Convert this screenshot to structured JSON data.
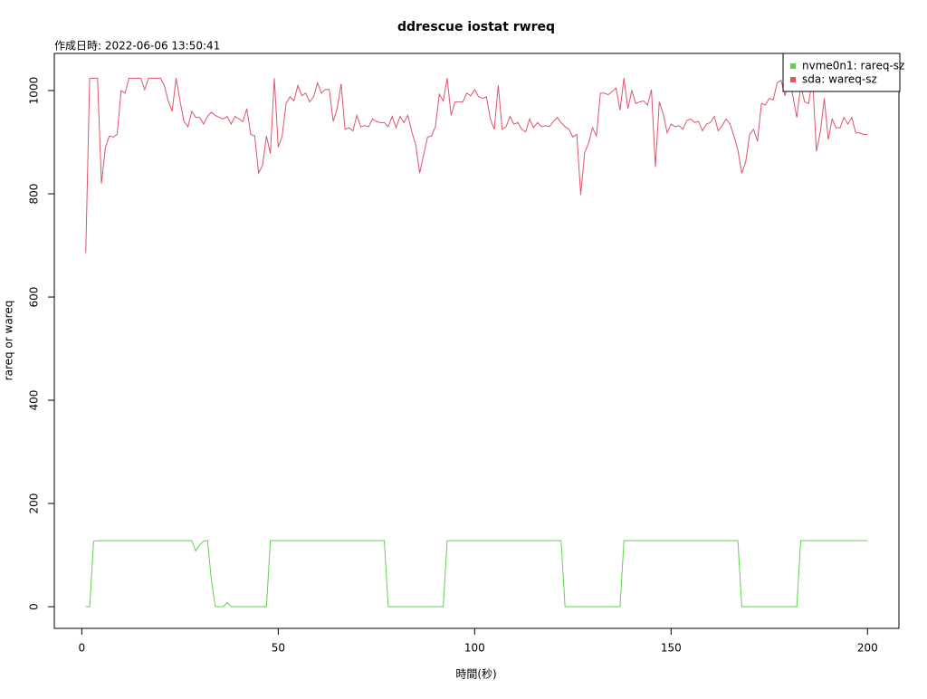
{
  "chart_data": {
    "type": "line",
    "title": "ddrescue iostat rwreq",
    "subtitle": "作成日時: 2022-06-06 13:50:41",
    "xlabel": "時間(秒)",
    "ylabel": "rareq or wareq",
    "xlim": [
      -7,
      208
    ],
    "ylim": [
      -42,
      1072
    ],
    "xticks": [
      0,
      50,
      100,
      150,
      200
    ],
    "yticks": [
      0,
      200,
      400,
      600,
      800,
      1000
    ],
    "grid": false,
    "legend": "topright",
    "x": [
      1,
      2,
      3,
      4,
      5,
      6,
      7,
      8,
      9,
      10,
      11,
      12,
      13,
      14,
      15,
      16,
      17,
      18,
      19,
      20,
      21,
      22,
      23,
      24,
      25,
      26,
      27,
      28,
      29,
      30,
      31,
      32,
      33,
      34,
      35,
      36,
      37,
      38,
      39,
      40,
      41,
      42,
      43,
      44,
      45,
      46,
      47,
      48,
      49,
      50,
      51,
      52,
      53,
      54,
      55,
      56,
      57,
      58,
      59,
      60,
      61,
      62,
      63,
      64,
      65,
      66,
      67,
      68,
      69,
      70,
      71,
      72,
      73,
      74,
      75,
      76,
      77,
      78,
      79,
      80,
      81,
      82,
      83,
      84,
      85,
      86,
      87,
      88,
      89,
      90,
      91,
      92,
      93,
      94,
      95,
      96,
      97,
      98,
      99,
      100,
      101,
      102,
      103,
      104,
      105,
      106,
      107,
      108,
      109,
      110,
      111,
      112,
      113,
      114,
      115,
      116,
      117,
      118,
      119,
      120,
      121,
      122,
      123,
      124,
      125,
      126,
      127,
      128,
      129,
      130,
      131,
      132,
      133,
      134,
      135,
      136,
      137,
      138,
      139,
      140,
      141,
      142,
      143,
      144,
      145,
      146,
      147,
      148,
      149,
      150,
      151,
      152,
      153,
      154,
      155,
      156,
      157,
      158,
      159,
      160,
      161,
      162,
      163,
      164,
      165,
      166,
      167,
      168,
      169,
      170,
      171,
      172,
      173,
      174,
      175,
      176,
      177,
      178,
      179,
      180,
      181,
      182,
      183,
      184,
      185,
      186,
      187,
      188,
      189,
      190,
      191,
      192,
      193,
      194,
      195,
      196,
      197,
      198,
      199,
      200
    ],
    "series": [
      {
        "name": "nvme0n1: rareq-sz",
        "color": "#61D04F",
        "values": [
          0,
          0,
          127,
          128,
          128,
          128,
          128,
          128,
          128,
          128,
          128,
          128,
          128,
          128,
          128,
          128,
          128,
          128,
          128,
          128,
          128,
          128,
          128,
          128,
          128,
          128,
          128,
          128,
          108,
          120,
          127,
          128,
          50,
          0,
          0,
          0,
          8,
          0,
          0,
          0,
          0,
          0,
          0,
          0,
          0,
          0,
          0,
          128,
          128,
          128,
          128,
          128,
          128,
          128,
          128,
          128,
          128,
          128,
          128,
          128,
          128,
          128,
          128,
          128,
          128,
          128,
          128,
          128,
          128,
          128,
          128,
          128,
          128,
          128,
          128,
          128,
          128,
          0,
          0,
          0,
          0,
          0,
          0,
          0,
          0,
          0,
          0,
          0,
          0,
          0,
          0,
          0,
          128,
          128,
          128,
          128,
          128,
          128,
          128,
          128,
          128,
          128,
          128,
          128,
          128,
          128,
          128,
          128,
          128,
          128,
          128,
          128,
          128,
          128,
          128,
          128,
          128,
          128,
          128,
          128,
          128,
          128,
          0,
          0,
          0,
          0,
          0,
          0,
          0,
          0,
          0,
          0,
          0,
          0,
          0,
          0,
          0,
          128,
          128,
          128,
          128,
          128,
          128,
          128,
          128,
          128,
          128,
          128,
          128,
          128,
          128,
          128,
          128,
          128,
          128,
          128,
          128,
          128,
          128,
          128,
          128,
          128,
          128,
          128,
          128,
          128,
          128,
          0,
          0,
          0,
          0,
          0,
          0,
          0,
          0,
          0,
          0,
          0,
          0,
          0,
          0,
          0,
          128,
          128,
          128,
          128,
          128,
          128,
          128,
          128,
          128,
          128,
          128,
          128,
          128,
          128,
          128,
          128,
          128,
          128
        ]
      },
      {
        "name": "sda: wareq-sz",
        "color": "#DF536B",
        "values": [
          685,
          1024,
          1024,
          1024,
          820,
          890,
          912,
          910,
          915,
          1000,
          995,
          1024,
          1024,
          1024,
          1024,
          1002,
          1024,
          1024,
          1024,
          1024,
          1010,
          980,
          960,
          1024,
          980,
          940,
          930,
          960,
          948,
          948,
          935,
          950,
          958,
          952,
          948,
          945,
          950,
          935,
          950,
          945,
          940,
          965,
          915,
          912,
          840,
          855,
          912,
          878,
          1024,
          890,
          912,
          975,
          988,
          980,
          1010,
          990,
          995,
          978,
          988,
          1015,
          995,
          1002,
          1002,
          940,
          965,
          1013,
          925,
          928,
          922,
          952,
          930,
          932,
          930,
          945,
          940,
          938,
          938,
          930,
          950,
          928,
          950,
          938,
          952,
          920,
          895,
          840,
          875,
          910,
          912,
          930,
          993,
          980,
          1024,
          952,
          978,
          978,
          978,
          995,
          990,
          1002,
          988,
          985,
          988,
          945,
          925,
          1010,
          925,
          930,
          950,
          935,
          938,
          925,
          920,
          945,
          928,
          938,
          930,
          932,
          930,
          940,
          948,
          938,
          930,
          925,
          910,
          915,
          798,
          880,
          898,
          928,
          912,
          995,
          995,
          992,
          998,
          1005,
          962,
          1024,
          965,
          1000,
          975,
          978,
          980,
          972,
          1002,
          852,
          978,
          955,
          918,
          935,
          930,
          932,
          925,
          942,
          945,
          938,
          940,
          922,
          935,
          938,
          950,
          922,
          932,
          945,
          935,
          912,
          885,
          840,
          862,
          915,
          925,
          902,
          975,
          972,
          985,
          982,
          1015,
          1020,
          990,
          1024,
          990,
          948,
          1010,
          978,
          975,
          1024,
          882,
          920,
          985,
          905,
          945,
          928,
          928,
          948,
          935,
          948,
          918,
          918,
          915,
          915
        ]
      }
    ]
  }
}
